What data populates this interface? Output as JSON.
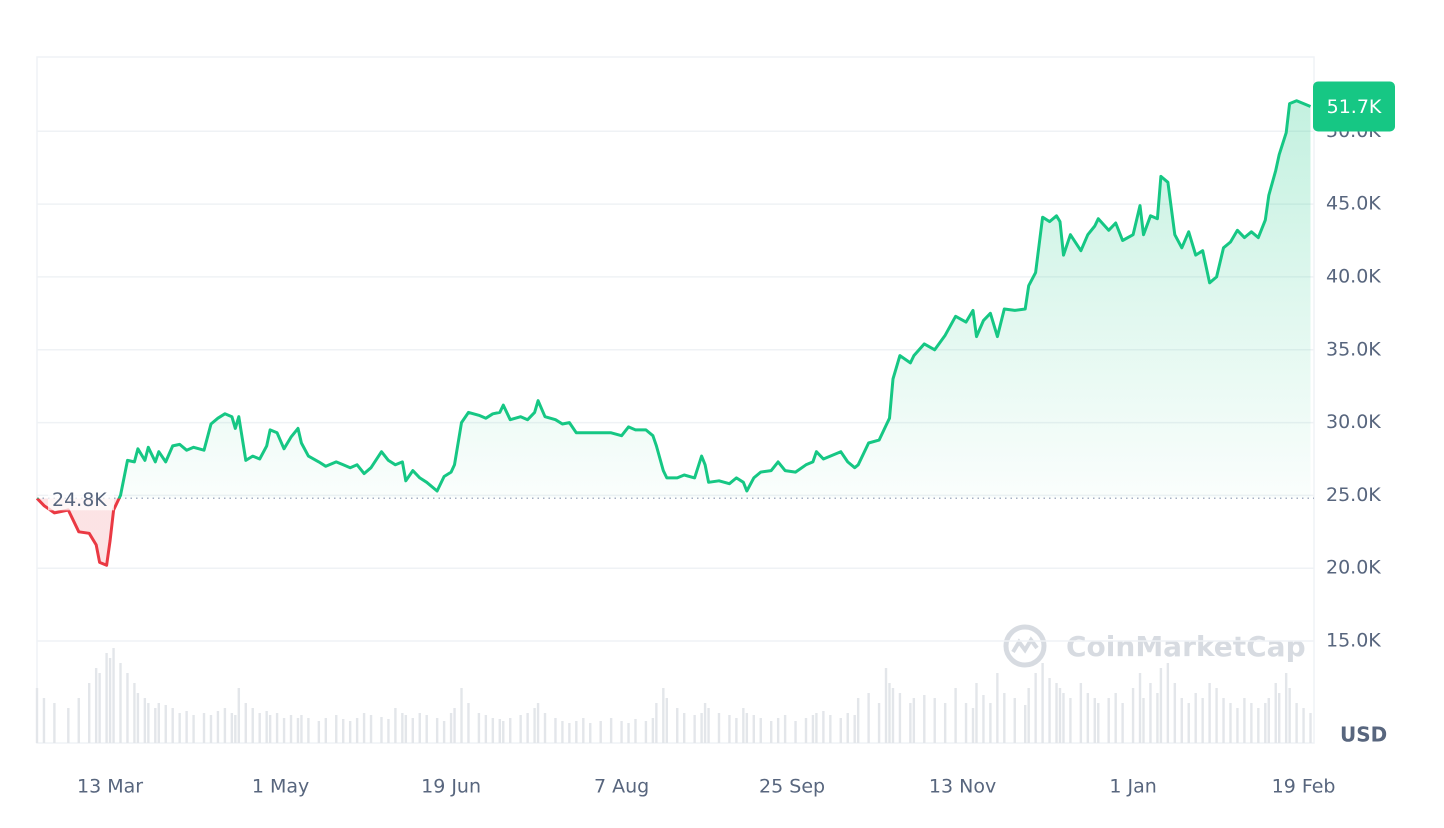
{
  "chart_data": {
    "type": "line",
    "x": [
      0,
      2,
      5,
      9,
      12,
      15,
      17,
      18,
      20,
      21,
      22,
      24,
      26,
      28,
      29,
      31,
      32,
      34,
      35,
      37,
      39,
      41,
      43,
      45,
      48,
      50,
      52,
      54,
      56,
      57,
      58,
      60,
      62,
      64,
      66,
      67,
      69,
      71,
      73,
      75,
      76,
      78,
      81,
      83,
      86,
      88,
      90,
      92,
      94,
      96,
      99,
      101,
      103,
      105,
      106,
      108,
      110,
      112,
      115,
      117,
      119,
      120,
      122,
      124,
      127,
      129,
      131,
      133,
      134,
      136,
      139,
      141,
      143,
      144,
      146,
      149,
      151,
      153,
      155,
      157,
      159,
      162,
      165,
      168,
      170,
      172,
      175,
      177,
      178,
      180,
      181,
      184,
      186,
      189,
      191,
      192,
      193,
      196,
      199,
      201,
      203,
      204,
      206,
      208,
      211,
      213,
      215,
      218,
      221,
      223,
      224,
      226,
      228,
      231,
      233,
      235,
      236,
      239,
      242,
      244,
      245,
      246,
      248,
      251,
      252,
      255,
      258,
      261,
      264,
      267,
      269,
      270,
      272,
      274,
      276,
      278,
      281,
      284,
      285,
      287,
      289,
      291,
      293,
      294,
      295,
      297,
      300,
      302,
      304,
      305,
      308,
      310,
      312,
      315,
      317,
      318,
      320,
      322,
      323,
      325,
      327,
      329,
      331,
      333,
      335,
      337,
      339,
      341,
      343,
      345,
      347,
      349,
      351,
      353,
      354,
      356,
      357,
      359,
      360,
      362,
      364,
      366
    ],
    "values": [
      24.8,
      24.3,
      23.8,
      24.0,
      22.5,
      22.4,
      21.6,
      20.4,
      20.2,
      21.9,
      24.0,
      25.0,
      27.4,
      27.3,
      28.2,
      27.4,
      28.3,
      27.3,
      28.0,
      27.3,
      28.4,
      28.5,
      28.1,
      28.3,
      28.1,
      29.9,
      30.3,
      30.6,
      30.4,
      29.6,
      30.4,
      27.4,
      27.7,
      27.5,
      28.4,
      29.5,
      29.3,
      28.2,
      29.0,
      29.6,
      28.6,
      27.7,
      27.3,
      27.0,
      27.3,
      27.1,
      26.9,
      27.1,
      26.5,
      26.9,
      28.0,
      27.4,
      27.1,
      27.3,
      26.0,
      26.7,
      26.2,
      25.9,
      25.3,
      26.3,
      26.6,
      27.1,
      30.0,
      30.7,
      30.5,
      30.3,
      30.6,
      30.7,
      31.2,
      30.2,
      30.4,
      30.2,
      30.7,
      31.5,
      30.4,
      30.2,
      29.9,
      30.0,
      29.3,
      29.3,
      29.3,
      29.3,
      29.3,
      29.1,
      29.7,
      29.5,
      29.5,
      29.1,
      28.4,
      26.7,
      26.2,
      26.2,
      26.4,
      26.2,
      27.7,
      27.1,
      25.9,
      26.0,
      25.8,
      26.2,
      25.9,
      25.3,
      26.2,
      26.6,
      26.7,
      27.3,
      26.7,
      26.6,
      27.1,
      27.3,
      28.0,
      27.5,
      27.7,
      28.0,
      27.3,
      26.9,
      27.1,
      28.6,
      28.8,
      29.8,
      30.3,
      33.0,
      34.6,
      34.1,
      34.6,
      35.4,
      35.0,
      36.0,
      37.3,
      36.9,
      37.7,
      35.9,
      37.0,
      37.5,
      35.9,
      37.8,
      37.7,
      37.8,
      39.4,
      40.3,
      44.1,
      43.8,
      44.2,
      43.8,
      41.5,
      42.9,
      41.8,
      42.9,
      43.5,
      44.0,
      43.2,
      43.7,
      42.5,
      42.9,
      44.9,
      42.9,
      44.2,
      44.0,
      46.9,
      46.5,
      42.9,
      42.0,
      43.1,
      41.5,
      41.8,
      39.6,
      40.0,
      42.0,
      42.4,
      43.2,
      42.7,
      43.1,
      42.7,
      43.9,
      45.6,
      47.3,
      48.4,
      49.9,
      51.9,
      52.1,
      51.9,
      51.7
    ],
    "volume": [
      55,
      45,
      40,
      35,
      45,
      60,
      75,
      70,
      90,
      85,
      95,
      80,
      70,
      60,
      50,
      45,
      40,
      35,
      40,
      38,
      35,
      30,
      32,
      28,
      30,
      28,
      32,
      35,
      30,
      28,
      55,
      40,
      35,
      30,
      32,
      28,
      30,
      25,
      28,
      25,
      28,
      25,
      22,
      25,
      28,
      24,
      22,
      25,
      30,
      28,
      26,
      24,
      35,
      30,
      28,
      25,
      30,
      28,
      25,
      22,
      30,
      35,
      55,
      40,
      30,
      28,
      25,
      24,
      22,
      25,
      28,
      30,
      35,
      40,
      30,
      25,
      22,
      20,
      22,
      25,
      20,
      22,
      25,
      22,
      20,
      24,
      22,
      25,
      40,
      55,
      45,
      35,
      30,
      28,
      30,
      40,
      35,
      30,
      28,
      25,
      35,
      30,
      28,
      25,
      22,
      25,
      28,
      22,
      25,
      28,
      30,
      32,
      28,
      25,
      30,
      28,
      45,
      50,
      40,
      75,
      60,
      55,
      50,
      40,
      45,
      48,
      45,
      40,
      55,
      40,
      35,
      60,
      48,
      40,
      70,
      50,
      45,
      38,
      55,
      70,
      80,
      65,
      60,
      55,
      50,
      45,
      60,
      50,
      45,
      40,
      45,
      50,
      40,
      55,
      70,
      45,
      60,
      50,
      75,
      80,
      60,
      45,
      40,
      50,
      45,
      60,
      55,
      45,
      40,
      35,
      45,
      40,
      35,
      40,
      45,
      60,
      50,
      70,
      55,
      40,
      35,
      30
    ],
    "volume_ylim": [
      0,
      100
    ],
    "color": "#16c784",
    "negative_color": "#ea3943",
    "volume_color": "#e3e6ea",
    "baseline": 24.8,
    "baseline_label": "24.8K",
    "last_value_label": "51.7K",
    "xlim": [
      0,
      367
    ],
    "xticks": [
      {
        "value": 21,
        "label": "13 Mar"
      },
      {
        "value": 70,
        "label": "1 May"
      },
      {
        "value": 119,
        "label": "19 Jun"
      },
      {
        "value": 168,
        "label": "7 Aug"
      },
      {
        "value": 217,
        "label": "25 Sep"
      },
      {
        "value": 266,
        "label": "13 Nov"
      },
      {
        "value": 315,
        "label": "1 Jan"
      },
      {
        "value": 364,
        "label": "19 Feb"
      }
    ],
    "ylim": [
      8,
      55.1
    ],
    "yticks": [
      {
        "value": 15,
        "label": "15.0K"
      },
      {
        "value": 20,
        "label": "20.0K"
      },
      {
        "value": 25,
        "label": "25.0K"
      },
      {
        "value": 30,
        "label": "30.0K"
      },
      {
        "value": 35,
        "label": "35.0K"
      },
      {
        "value": 40,
        "label": "40.0K"
      },
      {
        "value": 45,
        "label": "45.0K"
      },
      {
        "value": 50,
        "label": "50.0K"
      }
    ],
    "grid": true,
    "currency": "USD",
    "watermark": "CoinMarketCap"
  }
}
